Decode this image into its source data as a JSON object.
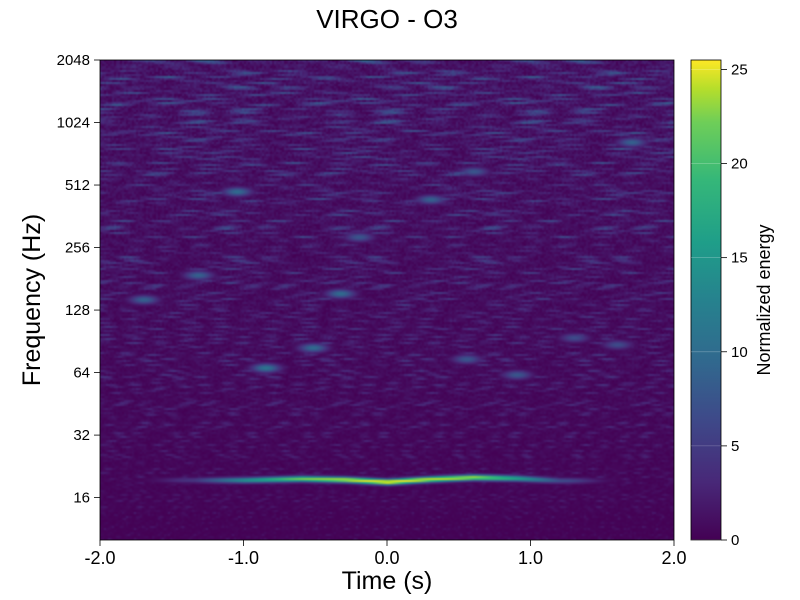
{
  "chart_data": {
    "type": "heatmap",
    "title": "VIRGO - O3",
    "xlabel": "Time (s)",
    "ylabel": "Frequency (Hz)",
    "xlim": [
      -2.0,
      2.0
    ],
    "ylim": [
      10,
      2048
    ],
    "y_scale": "log2",
    "x_ticks": [
      "-2.0",
      "-1.0",
      "0.0",
      "1.0",
      "2.0"
    ],
    "x_tick_values": [
      -2.0,
      -1.0,
      0.0,
      1.0,
      2.0
    ],
    "y_ticks": [
      "16",
      "32",
      "64",
      "128",
      "256",
      "512",
      "1024",
      "2048"
    ],
    "y_tick_values": [
      16,
      32,
      64,
      128,
      256,
      512,
      1024,
      2048
    ],
    "colormap": "viridis",
    "colorbar": {
      "label": "Normalized energy",
      "range": [
        0,
        25.5
      ],
      "ticks": [
        "0",
        "5",
        "10",
        "15",
        "20",
        "25"
      ],
      "tick_values": [
        0,
        5,
        10,
        15,
        20,
        25
      ]
    },
    "features": [
      {
        "kind": "chirp-track",
        "t": [
          -1.35,
          -1.0,
          -0.6,
          -0.3,
          0.0,
          0.3,
          0.6,
          0.9,
          1.2
        ],
        "f": [
          19.6,
          19.6,
          19.9,
          19.7,
          19.2,
          19.8,
          20.2,
          20.0,
          19.5
        ],
        "energy": [
          4,
          13,
          20,
          23,
          25.5,
          23,
          22,
          15,
          6
        ]
      },
      {
        "kind": "noise-blobs",
        "t": [
          -0.85,
          -0.52,
          -0.33,
          -1.32,
          -1.7,
          -1.05,
          0.3,
          0.55,
          0.9,
          1.3,
          1.6,
          -0.2,
          0.6,
          1.7
        ],
        "f": [
          68,
          85,
          155,
          190,
          145,
          480,
          440,
          75,
          63,
          95,
          88,
          290,
          600,
          830
        ],
        "energy": [
          10,
          9,
          9,
          8,
          8,
          9,
          8,
          7,
          7,
          6,
          6,
          7,
          7,
          8
        ]
      }
    ]
  }
}
